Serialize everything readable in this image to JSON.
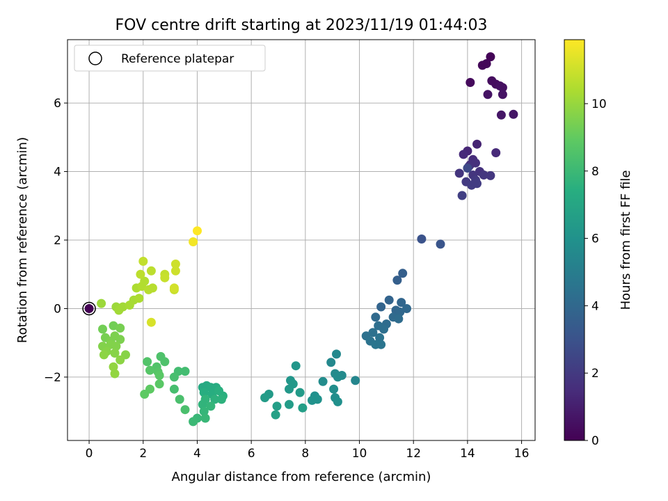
{
  "chart_data": {
    "type": "scatter",
    "title": "FOV centre drift starting at 2023/11/19 01:44:03",
    "xlabel": "Angular distance from reference (arcmin)",
    "ylabel": "Rotation from reference (arcmin)",
    "xlim": [
      -0.8,
      16.5
    ],
    "ylim": [
      -3.85,
      7.85
    ],
    "xticks": [
      0,
      2,
      4,
      6,
      8,
      10,
      12,
      14,
      16
    ],
    "yticks": [
      -2,
      0,
      2,
      4,
      6
    ],
    "xtick_labels": [
      "0",
      "2",
      "4",
      "6",
      "8",
      "10",
      "12",
      "14",
      "16"
    ],
    "ytick_labels": [
      "−2",
      "0",
      "2",
      "4",
      "6"
    ],
    "grid": true,
    "legend": {
      "position": "top-left",
      "entries": [
        "Reference platepar"
      ]
    },
    "reference_point": {
      "x": 0,
      "y": 0
    },
    "colorbar": {
      "label": "Hours from first FF file",
      "range": [
        0,
        11.9
      ],
      "ticks": [
        0,
        2,
        4,
        6,
        8,
        10
      ],
      "tick_labels": [
        "0",
        "2",
        "4",
        "6",
        "8",
        "10"
      ],
      "colormap": "viridis"
    },
    "points": [
      {
        "x": 14.85,
        "y": 7.35,
        "c": 0.1
      },
      {
        "x": 14.55,
        "y": 7.1,
        "c": 0.2
      },
      {
        "x": 14.7,
        "y": 7.15,
        "c": 0.2
      },
      {
        "x": 14.1,
        "y": 6.6,
        "c": 0.3
      },
      {
        "x": 14.9,
        "y": 6.65,
        "c": 0.4
      },
      {
        "x": 15.05,
        "y": 6.55,
        "c": 0.4
      },
      {
        "x": 15.2,
        "y": 6.5,
        "c": 0.5
      },
      {
        "x": 15.3,
        "y": 6.45,
        "c": 0.5
      },
      {
        "x": 14.75,
        "y": 6.25,
        "c": 0.6
      },
      {
        "x": 15.3,
        "y": 6.25,
        "c": 0.6
      },
      {
        "x": 15.25,
        "y": 5.65,
        "c": 0.7
      },
      {
        "x": 15.7,
        "y": 5.67,
        "c": 0.7
      },
      {
        "x": 14.35,
        "y": 4.8,
        "c": 1.2
      },
      {
        "x": 14.0,
        "y": 4.6,
        "c": 1.3
      },
      {
        "x": 13.85,
        "y": 4.5,
        "c": 1.4
      },
      {
        "x": 15.05,
        "y": 4.55,
        "c": 1.4
      },
      {
        "x": 14.2,
        "y": 4.35,
        "c": 1.5
      },
      {
        "x": 14.1,
        "y": 4.2,
        "c": 1.6
      },
      {
        "x": 14.3,
        "y": 4.25,
        "c": 1.6
      },
      {
        "x": 14.05,
        "y": 4.15,
        "c": 1.7
      },
      {
        "x": 14.45,
        "y": 4.0,
        "c": 1.7
      },
      {
        "x": 13.7,
        "y": 3.95,
        "c": 1.8
      },
      {
        "x": 14.2,
        "y": 3.9,
        "c": 1.8
      },
      {
        "x": 14.6,
        "y": 3.9,
        "c": 1.9
      },
      {
        "x": 14.85,
        "y": 3.88,
        "c": 1.9
      },
      {
        "x": 14.3,
        "y": 3.75,
        "c": 2.0
      },
      {
        "x": 13.95,
        "y": 3.7,
        "c": 2.0
      },
      {
        "x": 14.15,
        "y": 3.6,
        "c": 2.1
      },
      {
        "x": 14.35,
        "y": 3.65,
        "c": 2.1
      },
      {
        "x": 13.8,
        "y": 3.3,
        "c": 2.2
      },
      {
        "x": 14.0,
        "y": 4.1,
        "c": 2.6
      },
      {
        "x": 12.3,
        "y": 2.03,
        "c": 3.0
      },
      {
        "x": 13.0,
        "y": 1.88,
        "c": 3.1
      },
      {
        "x": 11.6,
        "y": 1.03,
        "c": 3.6
      },
      {
        "x": 11.4,
        "y": 0.83,
        "c": 3.6
      },
      {
        "x": 11.1,
        "y": 0.25,
        "c": 3.8
      },
      {
        "x": 10.8,
        "y": 0.05,
        "c": 3.8
      },
      {
        "x": 11.55,
        "y": 0.18,
        "c": 3.9
      },
      {
        "x": 11.35,
        "y": -0.05,
        "c": 3.9
      },
      {
        "x": 11.75,
        "y": 0.0,
        "c": 4.0
      },
      {
        "x": 11.5,
        "y": -0.1,
        "c": 4.0
      },
      {
        "x": 10.6,
        "y": -0.25,
        "c": 4.1
      },
      {
        "x": 11.25,
        "y": -0.25,
        "c": 4.1
      },
      {
        "x": 11.45,
        "y": -0.3,
        "c": 4.2
      },
      {
        "x": 11.0,
        "y": -0.45,
        "c": 4.2
      },
      {
        "x": 10.7,
        "y": -0.5,
        "c": 4.3
      },
      {
        "x": 10.9,
        "y": -0.6,
        "c": 4.3
      },
      {
        "x": 10.5,
        "y": -0.7,
        "c": 4.4
      },
      {
        "x": 10.25,
        "y": -0.8,
        "c": 4.4
      },
      {
        "x": 10.75,
        "y": -0.85,
        "c": 4.5
      },
      {
        "x": 10.4,
        "y": -0.95,
        "c": 4.5
      },
      {
        "x": 10.6,
        "y": -1.05,
        "c": 4.6
      },
      {
        "x": 10.8,
        "y": -1.05,
        "c": 4.6
      },
      {
        "x": 9.85,
        "y": -2.1,
        "c": 5.4
      },
      {
        "x": 9.15,
        "y": -1.33,
        "c": 5.5
      },
      {
        "x": 8.95,
        "y": -1.57,
        "c": 5.5
      },
      {
        "x": 9.1,
        "y": -1.9,
        "c": 5.6
      },
      {
        "x": 9.35,
        "y": -1.95,
        "c": 5.6
      },
      {
        "x": 9.2,
        "y": -2.0,
        "c": 5.7
      },
      {
        "x": 8.65,
        "y": -2.13,
        "c": 5.7
      },
      {
        "x": 9.05,
        "y": -2.35,
        "c": 5.8
      },
      {
        "x": 9.1,
        "y": -2.6,
        "c": 5.8
      },
      {
        "x": 9.2,
        "y": -2.72,
        "c": 5.9
      },
      {
        "x": 8.35,
        "y": -2.55,
        "c": 5.9
      },
      {
        "x": 8.45,
        "y": -2.65,
        "c": 6.0
      },
      {
        "x": 8.25,
        "y": -2.68,
        "c": 6.0
      },
      {
        "x": 7.65,
        "y": -1.67,
        "c": 6.2
      },
      {
        "x": 7.45,
        "y": -2.1,
        "c": 6.2
      },
      {
        "x": 7.55,
        "y": -2.2,
        "c": 6.3
      },
      {
        "x": 7.4,
        "y": -2.35,
        "c": 6.3
      },
      {
        "x": 7.8,
        "y": -2.45,
        "c": 6.4
      },
      {
        "x": 6.65,
        "y": -2.5,
        "c": 6.4
      },
      {
        "x": 6.5,
        "y": -2.6,
        "c": 6.5
      },
      {
        "x": 7.4,
        "y": -2.8,
        "c": 6.5
      },
      {
        "x": 6.95,
        "y": -2.85,
        "c": 6.6
      },
      {
        "x": 7.9,
        "y": -2.9,
        "c": 6.6
      },
      {
        "x": 6.9,
        "y": -3.1,
        "c": 6.7
      },
      {
        "x": 4.2,
        "y": -2.3,
        "c": 7.2
      },
      {
        "x": 4.35,
        "y": -2.25,
        "c": 7.2
      },
      {
        "x": 4.5,
        "y": -2.3,
        "c": 7.3
      },
      {
        "x": 4.7,
        "y": -2.3,
        "c": 7.3
      },
      {
        "x": 4.25,
        "y": -2.45,
        "c": 7.4
      },
      {
        "x": 4.55,
        "y": -2.5,
        "c": 7.4
      },
      {
        "x": 4.8,
        "y": -2.4,
        "c": 7.5
      },
      {
        "x": 4.95,
        "y": -2.55,
        "c": 7.5
      },
      {
        "x": 4.65,
        "y": -2.65,
        "c": 7.6
      },
      {
        "x": 4.9,
        "y": -2.65,
        "c": 7.6
      },
      {
        "x": 4.3,
        "y": -2.65,
        "c": 7.7
      },
      {
        "x": 4.2,
        "y": -2.8,
        "c": 7.7
      },
      {
        "x": 4.5,
        "y": -2.85,
        "c": 7.8
      },
      {
        "x": 4.25,
        "y": -3.0,
        "c": 7.8
      },
      {
        "x": 4.0,
        "y": -3.2,
        "c": 7.9
      },
      {
        "x": 4.3,
        "y": -3.2,
        "c": 7.9
      },
      {
        "x": 3.85,
        "y": -3.3,
        "c": 8.0
      },
      {
        "x": 3.3,
        "y": -1.83,
        "c": 8.2
      },
      {
        "x": 3.55,
        "y": -1.83,
        "c": 8.2
      },
      {
        "x": 3.15,
        "y": -2.0,
        "c": 8.3
      },
      {
        "x": 3.15,
        "y": -2.35,
        "c": 8.3
      },
      {
        "x": 3.35,
        "y": -2.65,
        "c": 8.4
      },
      {
        "x": 3.55,
        "y": -2.95,
        "c": 8.4
      },
      {
        "x": 2.65,
        "y": -1.4,
        "c": 8.5
      },
      {
        "x": 2.8,
        "y": -1.55,
        "c": 8.5
      },
      {
        "x": 2.15,
        "y": -1.55,
        "c": 8.6
      },
      {
        "x": 2.5,
        "y": -1.7,
        "c": 8.6
      },
      {
        "x": 2.25,
        "y": -1.8,
        "c": 8.7
      },
      {
        "x": 2.55,
        "y": -1.85,
        "c": 8.7
      },
      {
        "x": 2.6,
        "y": -1.95,
        "c": 8.8
      },
      {
        "x": 2.6,
        "y": -2.2,
        "c": 8.8
      },
      {
        "x": 2.25,
        "y": -2.35,
        "c": 8.9
      },
      {
        "x": 2.05,
        "y": -2.5,
        "c": 8.9
      },
      {
        "x": 0.5,
        "y": -0.6,
        "c": 9.3
      },
      {
        "x": 0.9,
        "y": -0.5,
        "c": 9.3
      },
      {
        "x": 1.15,
        "y": -0.57,
        "c": 9.4
      },
      {
        "x": 0.6,
        "y": -0.85,
        "c": 9.4
      },
      {
        "x": 0.95,
        "y": -0.8,
        "c": 9.5
      },
      {
        "x": 0.8,
        "y": -0.95,
        "c": 9.5
      },
      {
        "x": 1.15,
        "y": -0.9,
        "c": 9.5
      },
      {
        "x": 0.5,
        "y": -1.1,
        "c": 9.6
      },
      {
        "x": 0.8,
        "y": -1.05,
        "c": 9.6
      },
      {
        "x": 1.0,
        "y": -1.1,
        "c": 9.6
      },
      {
        "x": 0.65,
        "y": -1.25,
        "c": 9.7
      },
      {
        "x": 0.95,
        "y": -1.3,
        "c": 9.7
      },
      {
        "x": 1.35,
        "y": -1.35,
        "c": 9.7
      },
      {
        "x": 0.55,
        "y": -1.35,
        "c": 9.8
      },
      {
        "x": 1.15,
        "y": -1.5,
        "c": 9.8
      },
      {
        "x": 0.9,
        "y": -1.7,
        "c": 9.9
      },
      {
        "x": 0.95,
        "y": -1.9,
        "c": 9.9
      },
      {
        "x": 0.45,
        "y": 0.15,
        "c": 10.1
      },
      {
        "x": 1.0,
        "y": 0.05,
        "c": 10.1
      },
      {
        "x": 1.25,
        "y": 0.05,
        "c": 10.2
      },
      {
        "x": 1.1,
        "y": -0.05,
        "c": 10.2
      },
      {
        "x": 1.5,
        "y": 0.1,
        "c": 10.3
      },
      {
        "x": 1.65,
        "y": 0.25,
        "c": 10.3
      },
      {
        "x": 1.85,
        "y": 0.3,
        "c": 10.4
      },
      {
        "x": 1.75,
        "y": 0.6,
        "c": 10.4
      },
      {
        "x": 1.95,
        "y": 0.65,
        "c": 10.5
      },
      {
        "x": 2.05,
        "y": 0.8,
        "c": 10.5
      },
      {
        "x": 2.2,
        "y": 0.55,
        "c": 10.6
      },
      {
        "x": 2.35,
        "y": 0.6,
        "c": 10.6
      },
      {
        "x": 2.3,
        "y": 1.1,
        "c": 10.7
      },
      {
        "x": 1.9,
        "y": 1.0,
        "c": 10.7
      },
      {
        "x": 2.0,
        "y": 1.38,
        "c": 10.8
      },
      {
        "x": 2.8,
        "y": 1.0,
        "c": 10.8
      },
      {
        "x": 2.8,
        "y": 0.9,
        "c": 10.9
      },
      {
        "x": 3.15,
        "y": 0.55,
        "c": 10.9
      },
      {
        "x": 3.2,
        "y": 1.1,
        "c": 11.0
      },
      {
        "x": 3.2,
        "y": 1.3,
        "c": 11.0
      },
      {
        "x": 3.15,
        "y": 0.6,
        "c": 11.1
      },
      {
        "x": 2.3,
        "y": -0.4,
        "c": 11.2
      },
      {
        "x": 3.85,
        "y": 1.95,
        "c": 11.7
      },
      {
        "x": 4.0,
        "y": 2.27,
        "c": 11.9
      }
    ]
  }
}
